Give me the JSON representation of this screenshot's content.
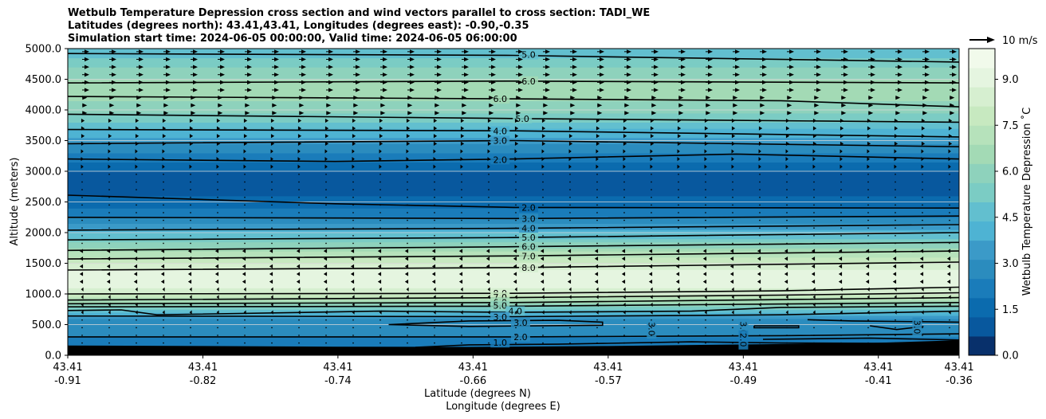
{
  "chart_data": {
    "type": "contour-cross-section",
    "title_lines": [
      "Wetbulb Temperature Depression cross section and wind vectors parallel to cross section: TADI_WE",
      "Latitudes (degrees north): 43.41,43.41, Longitudes (degrees east): -0.90,-0.35",
      "Simulation start time: 2024-06-05 00:00:00, Valid time: 2024-06-05 06:00:00"
    ],
    "ylabel": "Altitude (meters)",
    "xlabel_lat": "Latitude (degrees N)",
    "xlabel_lon": "Longitude (degrees E)",
    "ylim": [
      0,
      5000
    ],
    "y_ticks": [
      "0.0",
      "500.0",
      "1000.0",
      "1500.0",
      "2000.0",
      "2500.0",
      "3000.0",
      "3500.0",
      "4000.0",
      "4500.0",
      "5000.0"
    ],
    "x_ticks": [
      {
        "lat": "43.41",
        "lon": "-0.91"
      },
      {
        "lat": "43.41",
        "lon": "-0.82"
      },
      {
        "lat": "43.41",
        "lon": "-0.74"
      },
      {
        "lat": "43.41",
        "lon": "-0.66"
      },
      {
        "lat": "43.41",
        "lon": "-0.57"
      },
      {
        "lat": "43.41",
        "lon": "-0.49"
      },
      {
        "lat": "43.41",
        "lon": "-0.41"
      },
      {
        "lat": "43.41",
        "lon": "-0.36"
      }
    ],
    "colorbar": {
      "label": "Wetbulb Temperature Depression ˚C",
      "range": [
        0,
        10
      ],
      "ticks": [
        "0.0",
        "1.5",
        "3.0",
        "4.5",
        "6.0",
        "7.5",
        "9.0"
      ],
      "palette": [
        "#08306b",
        "#08589e",
        "#0b6bae",
        "#1a7cba",
        "#2b8cbe",
        "#3b9ac8",
        "#4eb3d3",
        "#62bfcf",
        "#7bccc4",
        "#8ed2bc",
        "#a3dab5",
        "#b6e2bb",
        "#c7e9c0",
        "#d6efd0",
        "#e5f5e0",
        "#f1faeb"
      ]
    },
    "wind_reference": "10 m/s",
    "grid": true,
    "contour_labels": [
      "5.0",
      "6.0",
      "6.0",
      "5.0",
      "4.0",
      "3.0",
      "2.0",
      "2.0",
      "3.0",
      "4.0",
      "5.0",
      "6.0",
      "7.0",
      "8.0",
      "8.0",
      "7.0",
      "6.0",
      "5.0",
      "4.0",
      "3.0",
      "3.0",
      "2.0",
      "1.0",
      "3.0",
      "3.0",
      "3.0",
      "2.0"
    ]
  }
}
